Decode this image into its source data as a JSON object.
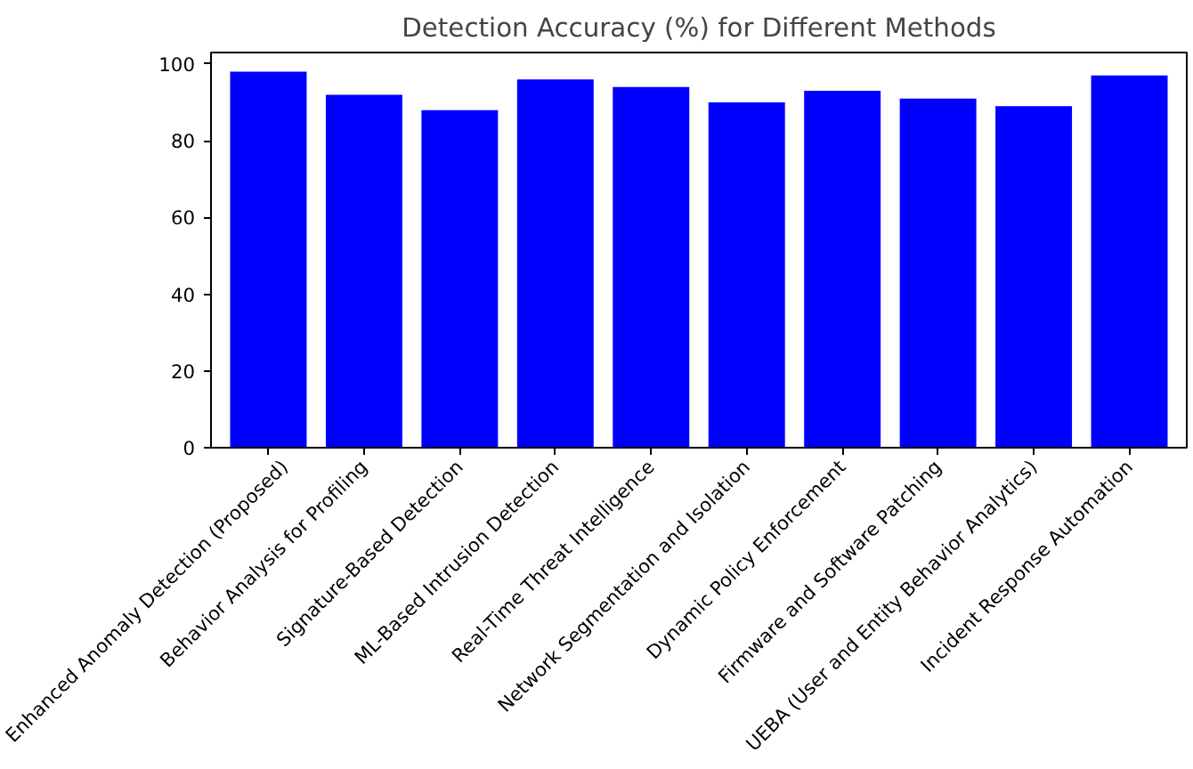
{
  "chart_data": {
    "type": "bar",
    "title": "Detection Accuracy (%) for Different Methods",
    "categories": [
      "Enhanced Anomaly Detection (Proposed)",
      "Behavior Analysis for Profiling",
      "Signature-Based Detection",
      "ML-Based Intrusion Detection",
      "Real-Time Threat Intelligence",
      "Network Segmentation and Isolation",
      "Dynamic Policy Enforcement",
      "Firmware and Software Patching",
      "UEBA (User and Entity Behavior Analytics)",
      "Incident Response Automation"
    ],
    "values": [
      98,
      92,
      88,
      96,
      94,
      90,
      93,
      91,
      89,
      97
    ],
    "color": "#0000ff",
    "ylim": [
      0,
      103
    ],
    "yticks": [
      0,
      20,
      40,
      60,
      80,
      100
    ],
    "grid": false
  }
}
